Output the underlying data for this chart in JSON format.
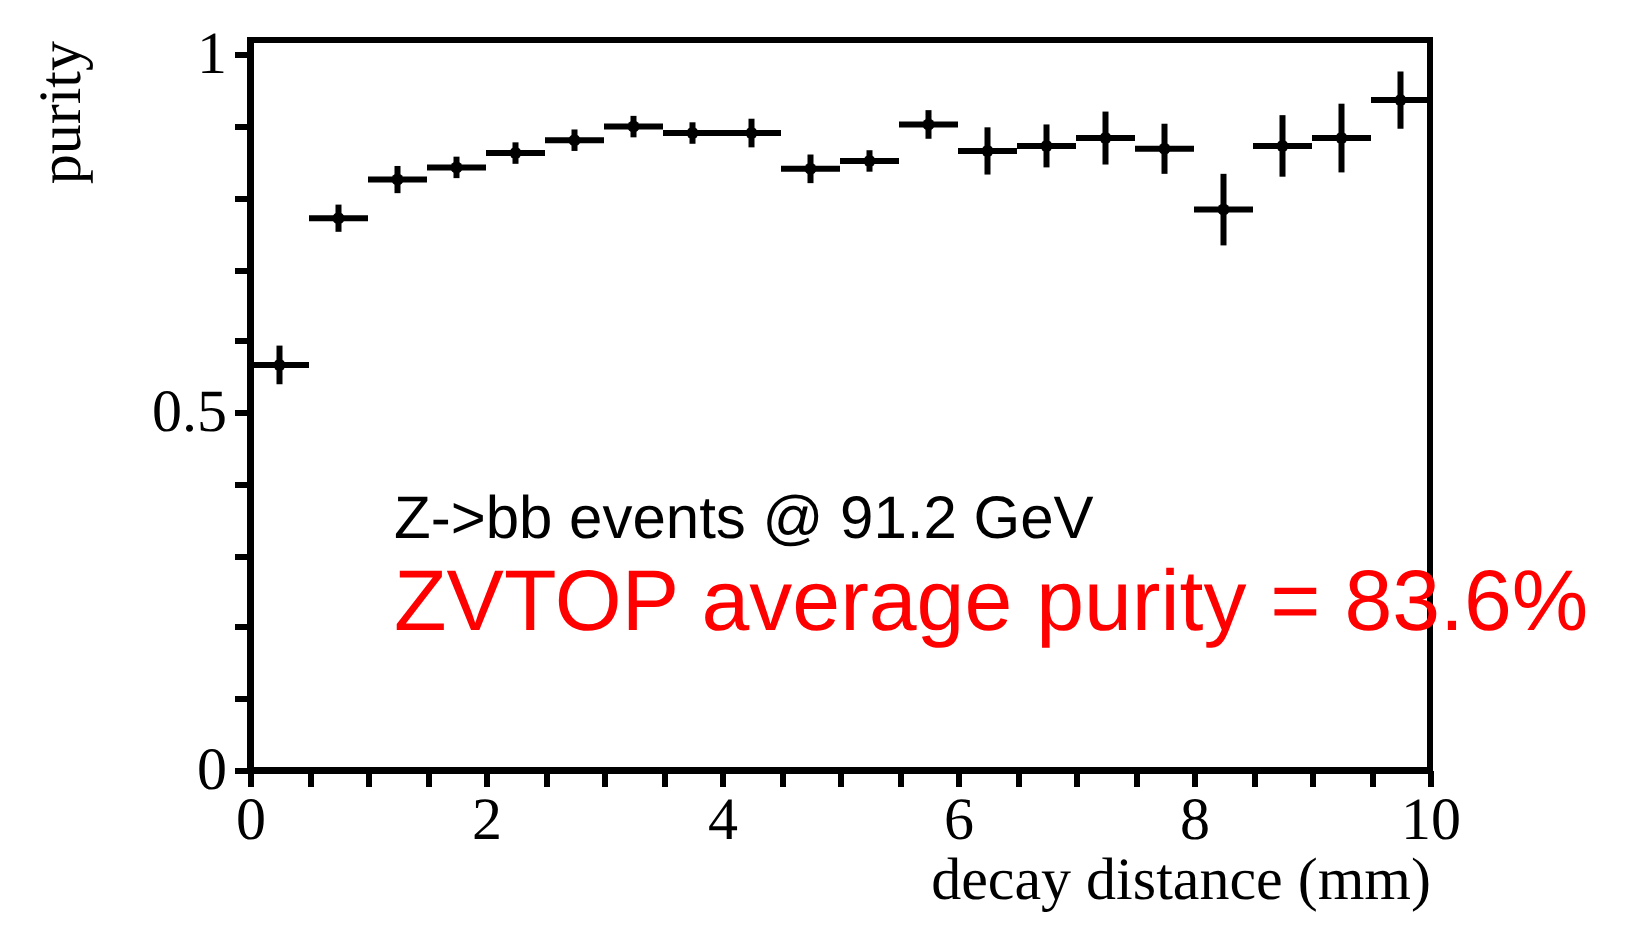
{
  "chart_data": {
    "type": "scatter",
    "xlabel": "decay distance (mm)",
    "ylabel": "purity",
    "x": [
      0.25,
      0.75,
      1.25,
      1.75,
      2.25,
      2.75,
      3.25,
      3.75,
      4.25,
      4.75,
      5.25,
      5.75,
      6.25,
      6.75,
      7.25,
      7.75,
      8.25,
      8.75,
      9.25,
      9.75
    ],
    "series": [
      {
        "color": "#000000",
        "values": [
          0.566,
          0.771,
          0.825,
          0.842,
          0.862,
          0.88,
          0.899,
          0.89,
          0.89,
          0.84,
          0.851,
          0.902,
          0.865,
          0.872,
          0.883,
          0.868,
          0.783,
          0.872,
          0.883,
          0.936
        ],
        "errors": [
          0.027,
          0.019,
          0.019,
          0.015,
          0.015,
          0.015,
          0.015,
          0.015,
          0.02,
          0.02,
          0.015,
          0.02,
          0.033,
          0.03,
          0.037,
          0.035,
          0.05,
          0.043,
          0.048,
          0.04
        ],
        "xerrors": [
          0.25,
          0.25,
          0.25,
          0.25,
          0.25,
          0.25,
          0.25,
          0.25,
          0.25,
          0.25,
          0.25,
          0.25,
          0.25,
          0.25,
          0.25,
          0.25,
          0.25,
          0.25,
          0.25,
          0.25
        ]
      }
    ],
    "xlim": [
      0,
      10
    ],
    "ylim": [
      0,
      1.02
    ],
    "xticks": [
      0,
      {
        "value": 0.5,
        "label": null
      },
      {
        "value": 1,
        "label": null
      },
      {
        "value": 1.5,
        "label": null
      },
      2,
      {
        "value": 2.5,
        "label": null
      },
      {
        "value": 3,
        "label": null
      },
      {
        "value": 3.5,
        "label": null
      },
      4,
      {
        "value": 4.5,
        "label": null
      },
      {
        "value": 5,
        "label": null
      },
      {
        "value": 5.5,
        "label": null
      },
      6,
      {
        "value": 6.5,
        "label": null
      },
      {
        "value": 7,
        "label": null
      },
      {
        "value": 7.5,
        "label": null
      },
      8,
      {
        "value": 8.5,
        "label": null
      },
      {
        "value": 9,
        "label": null
      },
      {
        "value": 9.5,
        "label": null
      },
      10
    ],
    "yticks": [
      0,
      {
        "value": 0.1,
        "label": null
      },
      {
        "value": 0.2,
        "label": null
      },
      {
        "value": 0.3,
        "label": null
      },
      {
        "value": 0.4,
        "label": null
      },
      0.5,
      {
        "value": 0.6,
        "label": null
      },
      {
        "value": 0.7,
        "label": null
      },
      {
        "value": 0.8,
        "label": null
      },
      {
        "value": 0.9,
        "label": null
      },
      1
    ],
    "grid": false,
    "annotations": [
      "Z->bb events @ 91.2 GeV",
      "ZVTOP average purity = 83.6%"
    ]
  }
}
